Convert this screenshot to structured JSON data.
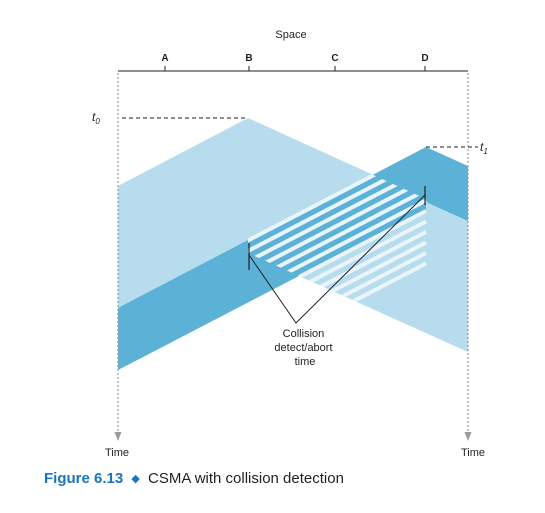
{
  "axis": {
    "space_label": "Space",
    "time_label_left": "Time",
    "time_label_right": "Time"
  },
  "stations": [
    {
      "label": "A"
    },
    {
      "label": "B"
    },
    {
      "label": "C"
    },
    {
      "label": "D"
    }
  ],
  "markers": {
    "t0": {
      "base": "t",
      "sub": "0"
    },
    "t1": {
      "base": "t",
      "sub": "1"
    }
  },
  "annotation": {
    "lines": [
      "Collision",
      "detect/abort",
      "time"
    ]
  },
  "caption": {
    "figure": "Figure 6.13",
    "separator": "◆",
    "text": "CSMA with collision detection"
  },
  "colors": {
    "light_wave": "#b7dcee",
    "dark_wave": "#5cb1d6",
    "axis": "#231f20",
    "caption_accent": "#1a75bb"
  }
}
